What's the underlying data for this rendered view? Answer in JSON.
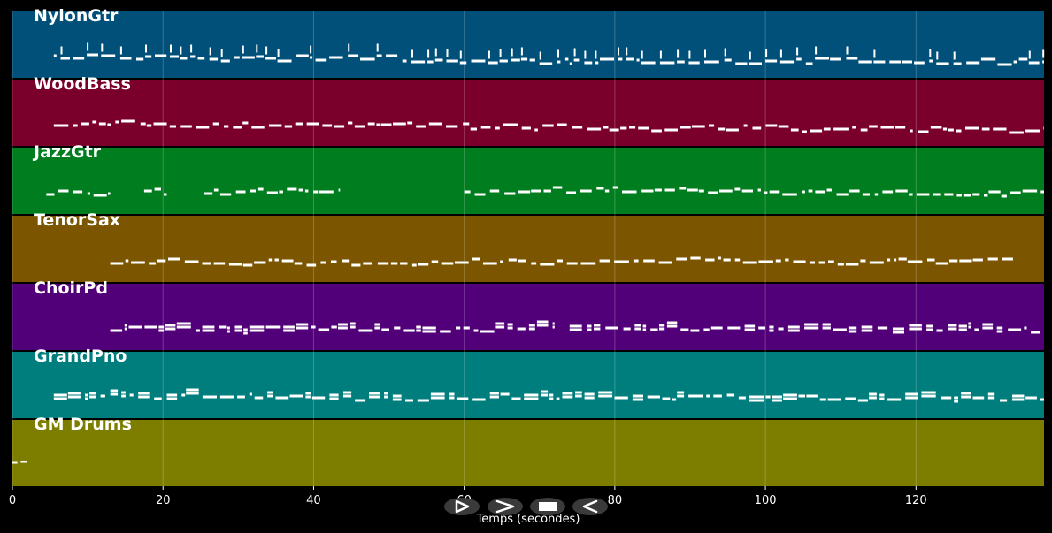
{
  "tracks": [
    {
      "name": "NylonGtr",
      "color": "#005079"
    },
    {
      "name": "WoodBass",
      "color": "#7a002b"
    },
    {
      "name": "JazzGtr",
      "color": "#007d1e"
    },
    {
      "name": "TenorSax",
      "color": "#7b5500"
    },
    {
      "name": "ChoirPd",
      "color": "#520079"
    },
    {
      "name": "GrandPno",
      "color": "#007d7d"
    },
    {
      "name": "GM Drums",
      "color": "#7d7d00"
    }
  ],
  "axis": {
    "xlabel": "Temps (secondes)",
    "xlim": [
      0,
      137
    ],
    "ticks": [
      "0",
      "20",
      "40",
      "60",
      "80",
      "100",
      "120"
    ],
    "grid": true
  },
  "note_color": "#ffffff",
  "controls": [
    {
      "name": "play-button",
      "icon": "play-outline-icon"
    },
    {
      "name": "forward-button",
      "icon": "chevron-right-icon"
    },
    {
      "name": "stop-button",
      "icon": "stop-icon"
    },
    {
      "name": "back-button",
      "icon": "rewind-outline-icon"
    }
  ],
  "note_activity": [
    {
      "track": "NylonGtr",
      "segments": [
        [
          5.5,
          137
        ]
      ]
    },
    {
      "track": "WoodBass",
      "segments": [
        [
          5.5,
          137
        ]
      ]
    },
    {
      "track": "JazzGtr",
      "segments": [
        [
          4.5,
          13
        ],
        [
          17.5,
          20.5
        ],
        [
          25.5,
          43.5
        ],
        [
          60,
          137
        ]
      ]
    },
    {
      "track": "TenorSax",
      "segments": [
        [
          13,
          133
        ]
      ]
    },
    {
      "track": "ChoirPd",
      "segments": [
        [
          13,
          72
        ],
        [
          74,
          136.5
        ]
      ]
    },
    {
      "track": "GrandPno",
      "segments": [
        [
          5.5,
          137
        ]
      ]
    },
    {
      "track": "GM Drums",
      "segments": [
        [
          0,
          2
        ]
      ]
    }
  ]
}
